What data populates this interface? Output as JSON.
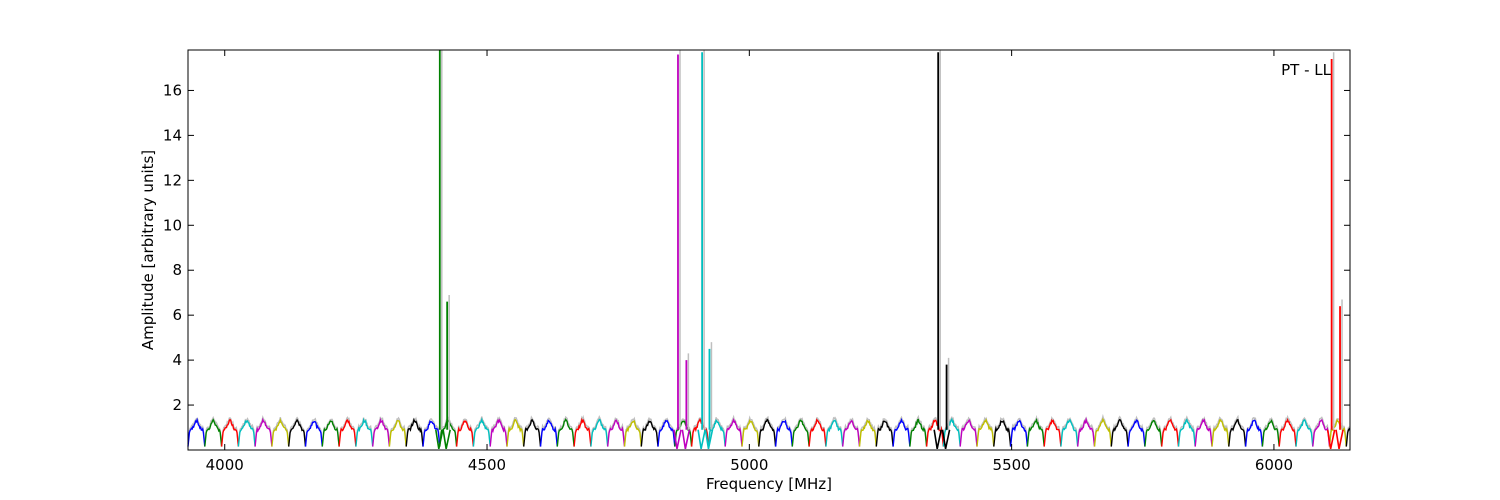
{
  "chart_data": {
    "type": "line",
    "title": "",
    "xlabel": "Frequency [MHz]",
    "ylabel": "Amplitude [arbitrary units]",
    "xlim": [
      3930,
      6145
    ],
    "ylim": [
      0,
      17.8
    ],
    "x_ticks": [
      4000,
      4500,
      5000,
      5500,
      6000
    ],
    "y_ticks": [
      2,
      4,
      6,
      8,
      10,
      12,
      14,
      16
    ],
    "grid": false,
    "annotation": "PT - LL",
    "baseline": {
      "channel_width_mhz": 32,
      "mean_level": 0.9,
      "peak_level": 1.35,
      "dip_level": 0.15
    },
    "background_color": "#bfbfbf",
    "series_colors": [
      "#0000ff",
      "#008000",
      "#ff0000",
      "#00bfbf",
      "#bf00bf",
      "#bfbf00",
      "#000000"
    ],
    "series": [
      {
        "name": "",
        "color": "#008000",
        "x": [
          4410,
          4424
        ],
        "values": [
          17.8,
          6.6
        ]
      },
      {
        "name": "",
        "color": "#bf00bf",
        "x": [
          4864,
          4880
        ],
        "values": [
          17.6,
          4.0
        ]
      },
      {
        "name": "",
        "color": "#00bfbf",
        "x": [
          4910,
          4924
        ],
        "values": [
          17.7,
          4.5
        ]
      },
      {
        "name": "",
        "color": "#000000",
        "x": [
          5360,
          5376
        ],
        "values": [
          17.7,
          3.8
        ]
      },
      {
        "name": "",
        "color": "#ff0000",
        "x": [
          6110,
          6126
        ],
        "values": [
          17.4,
          6.4
        ]
      }
    ]
  }
}
